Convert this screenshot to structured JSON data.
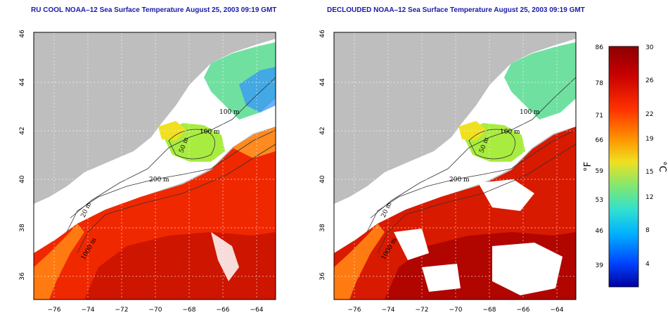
{
  "panels": [
    {
      "title": "RU COOL NOAA–12 Sea Surface Temperature August 25, 2003 09:19 GMT",
      "contours": [
        "100 m",
        "100 m",
        "50 m",
        "200 m",
        "20 m",
        "1000 m"
      ]
    },
    {
      "title": "DECLOUDED NOAA–12 Sea Surface Temperature August 25, 2003 09:19 GMT",
      "contours": [
        "100 m",
        "100 m",
        "50 m",
        "200 m",
        "20 m",
        "1000 m"
      ]
    }
  ],
  "axes": {
    "x_ticks": [
      "−76",
      "−74",
      "−72",
      "−70",
      "−68",
      "−66",
      "−64"
    ],
    "y_ticks": [
      "36",
      "38",
      "40",
      "42",
      "44",
      "46"
    ]
  },
  "colorbar": {
    "fahrenheit_label": "°F",
    "celsius_label": "°C",
    "fahrenheit_ticks": [
      "86",
      "78",
      "71",
      "66",
      "59",
      "53",
      "46",
      "39"
    ],
    "celsius_ticks": [
      "30",
      "26",
      "22",
      "19",
      "15",
      "12",
      "8",
      "4"
    ],
    "colors": [
      "#0000a0",
      "#0044ff",
      "#00b0ff",
      "#30e0d0",
      "#80e870",
      "#f0e020",
      "#ff9000",
      "#ff3000",
      "#c80000",
      "#8c0000"
    ]
  },
  "colors": {
    "land": "#bebebe",
    "cloud": "#ffffff",
    "title": "#1a1aa8"
  }
}
